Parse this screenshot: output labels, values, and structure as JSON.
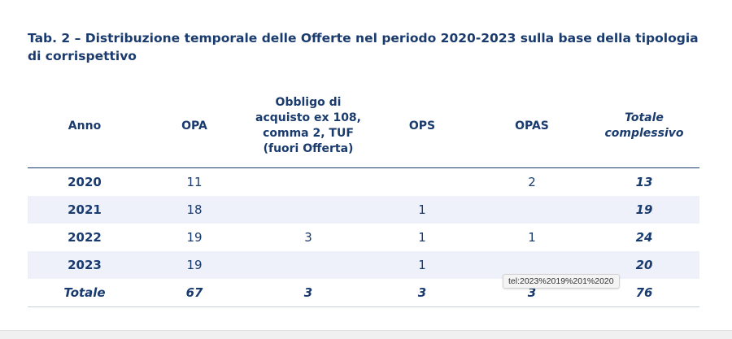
{
  "caption": "Tab. 2 – Distribuzione temporale delle Offerte nel periodo 2020-2023 sulla base della tipologia di corrispettivo",
  "table": {
    "headers": [
      "Anno",
      "OPA",
      "Obbligo di acquisto ex 108, comma 2, TUF (fuori Offerta)",
      "OPS",
      "OPAS",
      "Totale complessivo"
    ],
    "rows": [
      [
        "2020",
        "11",
        "",
        "",
        "2",
        "13"
      ],
      [
        "2021",
        "18",
        "",
        "1",
        "",
        "19"
      ],
      [
        "2022",
        "19",
        "3",
        "1",
        "1",
        "24"
      ],
      [
        "2023",
        "19",
        "",
        "1",
        "",
        "20"
      ]
    ],
    "totals": [
      "Totale",
      "67",
      "3",
      "3",
      "3",
      "76"
    ]
  },
  "tooltip": "tel:2023%2019%201%2020",
  "colors": {
    "navy": "#1a3b6e",
    "band": "#eef1f9"
  }
}
